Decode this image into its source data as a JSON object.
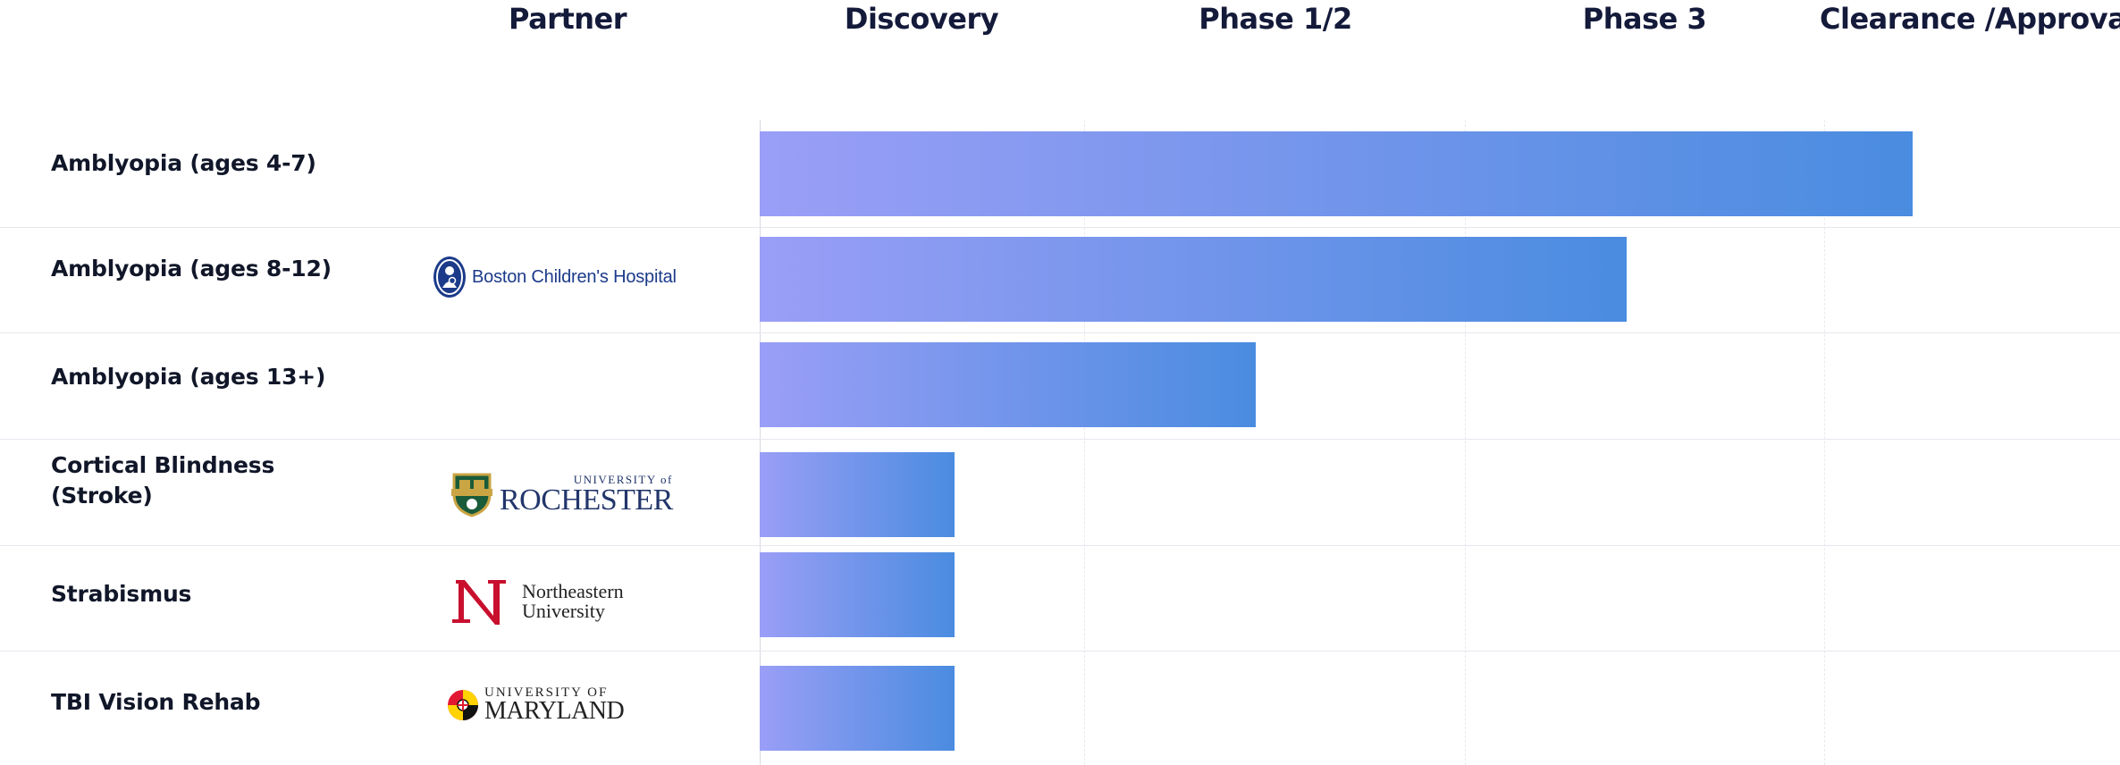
{
  "chart_data": {
    "type": "bar",
    "orientation": "horizontal",
    "title": "",
    "stages": [
      "Partner",
      "Discovery",
      "Phase 1/2",
      "Phase 3",
      "Clearance /Approval"
    ],
    "categories": [
      "Amblyopia (ages 4-7)",
      "Amblyopia (ages 8-12)",
      "Amblyopia (ages 13+)",
      "Cortical Blindness\n(Stroke)",
      "Strabismus",
      "TBI Vision Rehab"
    ],
    "values": [
      3.3,
      2.45,
      1.45,
      0.6,
      0.6,
      0.6
    ],
    "value_unit": "development stage (0 = start of Discovery, 1 = end of Discovery, 2 = end of Phase 1/2, 3 = end of Phase 3, 4 = end of Clearance /Approval)",
    "xlim": [
      0,
      4
    ],
    "grid": true,
    "legend": "none",
    "partners": [
      {
        "indication": "Amblyopia (ages 4-7)",
        "logo": ""
      },
      {
        "indication": "Amblyopia (ages 8-12)",
        "logo": "boston-childrens-hospital-logo",
        "text": "Boston Children's Hospital"
      },
      {
        "indication": "Amblyopia (ages 13+)",
        "logo": ""
      },
      {
        "indication": "Cortical Blindness (Stroke)",
        "logo": "university-of-rochester-logo",
        "text_top": "UNIVERSITY of",
        "text_main": "ROCHESTER"
      },
      {
        "indication": "Strabismus",
        "logo": "northeastern-university-logo",
        "text_line1": "Northeastern",
        "text_line2": "University"
      },
      {
        "indication": "TBI Vision Rehab",
        "logo": "university-of-maryland-logo",
        "text_top": "UNIVERSITY OF",
        "text_main": "MARYLAND"
      }
    ],
    "bar_color_start": "#9a9ef6",
    "bar_color_end": "#4a8ce0"
  }
}
